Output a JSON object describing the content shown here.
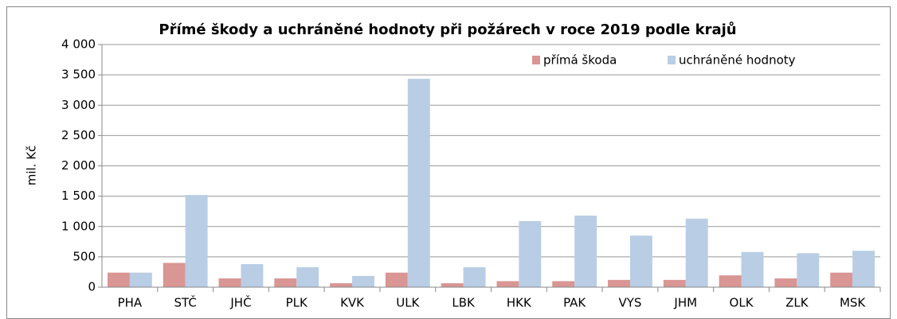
{
  "chart_data": {
    "type": "bar",
    "title": "Přímé škody a uchráněné hodnoty při požárech v roce 2019 podle krajů",
    "y_label": "mil. Kč",
    "categories": [
      "PHA",
      "STČ",
      "JHČ",
      "PLK",
      "KVK",
      "ULK",
      "LBK",
      "HKK",
      "PAK",
      "VYS",
      "JHM",
      "OLK",
      "ZLK",
      "MSK"
    ],
    "series": [
      {
        "name": "přímá škoda",
        "color": "#d99694",
        "values": [
          240,
          400,
          145,
          145,
          65,
          240,
          65,
          100,
          100,
          120,
          120,
          195,
          145,
          240
        ]
      },
      {
        "name": "uchráněné hodnoty",
        "color": "#b9cde5",
        "values": [
          240,
          1520,
          380,
          330,
          185,
          3435,
          330,
          1090,
          1180,
          850,
          1130,
          580,
          560,
          600
        ]
      }
    ],
    "ylim": [
      0,
      4000
    ],
    "yticks": [
      0,
      500,
      {
        "value": 1000,
        "label": "1 000"
      },
      {
        "value": 1500,
        "label": "1 500"
      },
      {
        "value": 2000,
        "label": "2 000"
      },
      {
        "value": 2500,
        "label": "2 500"
      },
      {
        "value": 3000,
        "label": "3 000"
      },
      {
        "value": 3500,
        "label": "3 500"
      },
      {
        "value": 4000,
        "label": "4 000"
      }
    ],
    "grid": true,
    "legend": "top-right"
  }
}
